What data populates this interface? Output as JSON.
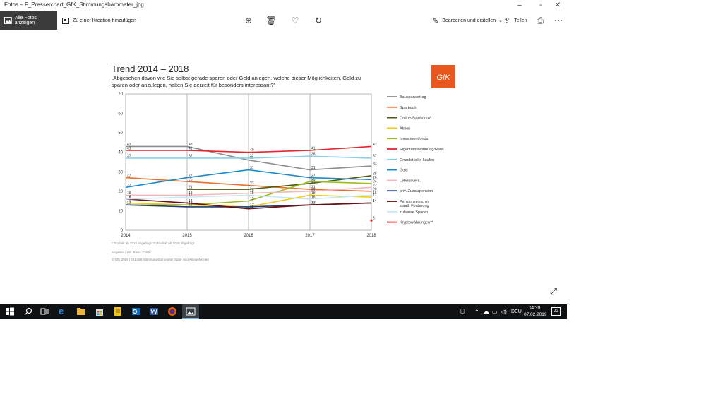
{
  "window": {
    "title": "Fotos – F_Presserchart_GfK_Stimmungsbarometer_jpg"
  },
  "toolbar": {
    "all_photos_label": "Alle Fotos anzeigen",
    "add_to_creation_label": "Zu einer Kreation hinzufügen",
    "edit_create_label": "Bearbeiten und erstellen",
    "share_label": "Teilen"
  },
  "image": {
    "heading": "Trend 2014 – 2018",
    "question_line1": "„Abgesehen davon wie Sie selbst gerade sparen oder Geld anlegen, welche dieser Möglichkeiten, Geld zu",
    "question_line2": "sparen oder anzulegen, halten Sie derzeit für besonders interessant?\"",
    "logo_text": "GfK",
    "footnote": "* Produkt ab 2015 abgefragt, ** Produkt ab 2018 abgefragt",
    "source1": "Angaben in %. Basis: CAWI",
    "source2": "© GfK 2019 | 261.588 Stimmungsbarometer Spar- und Anlageformen"
  },
  "chart_data": {
    "type": "line",
    "title": "",
    "x": [
      "2014",
      "2015",
      "2016",
      "2017",
      "2018"
    ],
    "ylim": [
      0,
      70
    ],
    "yticks": [
      0,
      10,
      20,
      30,
      40,
      50,
      60,
      70
    ],
    "grid": "vertical",
    "legend_placement": "right",
    "series": [
      {
        "name": "Bausparvertrag",
        "color": "#8c8c8c",
        "values": [
          43,
          43,
          36,
          31,
          33
        ]
      },
      {
        "name": "Sparbuch",
        "color": "#e8702a",
        "values": [
          27,
          25,
          23,
          21,
          20
        ]
      },
      {
        "name": "Online-Sparkonto*",
        "color": "#4d5a14",
        "values": [
          null,
          21,
          21,
          24,
          28
        ]
      },
      {
        "name": "Aktien",
        "color": "#f2c811",
        "values": [
          14,
          13,
          12,
          18,
          17
        ]
      },
      {
        "name": "Investmentfonds",
        "color": "#9bbb22",
        "values": [
          13,
          13,
          15,
          25,
          24
        ]
      },
      {
        "name": "Eigentumswohnung/Haus",
        "color": "#e3262c",
        "values": [
          41,
          41,
          40,
          41,
          43
        ]
      },
      {
        "name": "Grundstücke kaufen",
        "color": "#86d0ea",
        "values": [
          37,
          37,
          37,
          38,
          37
        ]
      },
      {
        "name": "Gold",
        "color": "#1f88c9",
        "values": [
          22,
          27,
          31,
          27,
          26
        ]
      },
      {
        "name": "Lebensvers.",
        "color": "#f4b8b8",
        "values": [
          18,
          18,
          19,
          20,
          22
        ]
      },
      {
        "name": "priv. Zusatzpension",
        "color": "#1f3a6e",
        "values": [
          13,
          12,
          12,
          13,
          14
        ]
      },
      {
        "name": "Pensionsvors. m. staatl. Förderung",
        "color": "#6b1010",
        "values": [
          16,
          14,
          11,
          13,
          14
        ]
      },
      {
        "name": "zuhause Sparen",
        "color": "#c6e6f4",
        "values": [
          16,
          17,
          18,
          16,
          18
        ]
      },
      {
        "name": "Kryptowährungen**",
        "color": "#e3262c",
        "values": [
          null,
          null,
          null,
          null,
          5
        ]
      }
    ]
  },
  "taskbar": {
    "language": "DEU",
    "time": "04:39",
    "date": "07.02.2019",
    "notification_count": "22"
  }
}
